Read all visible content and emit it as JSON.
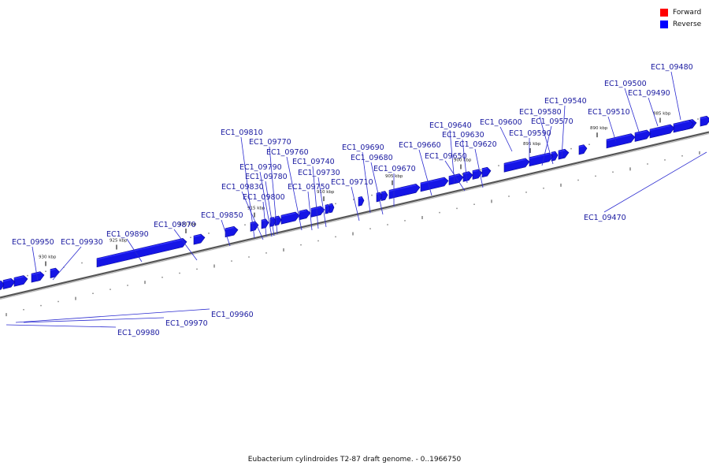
{
  "legend": {
    "items": [
      {
        "label": "Forward",
        "color": "#ff0000"
      },
      {
        "label": "Reverse",
        "color": "#0000ff"
      }
    ]
  },
  "footer": {
    "caption": "Eubacterium cylindroides T2-87 draft genome. - 0..1966750"
  },
  "colors": {
    "gene": "#1515e6",
    "gene_top": "#3333ff",
    "gene_shade": "#0a0a9a",
    "label": "#1a1aa0",
    "axis": "#777777"
  },
  "scale": {
    "ticks": [
      "885 kbp",
      "890 kbp",
      "895 kbp",
      "900 kbp",
      "905 kbp",
      "910 kbp",
      "915 kbp",
      "920 kbp",
      "925 kbp",
      "930 kbp"
    ]
  },
  "genes": [
    "EC1_09480",
    "EC1_09500",
    "EC1_09490",
    "EC1_09540",
    "EC1_09510",
    "EC1_09580",
    "EC1_09570",
    "EC1_09600",
    "EC1_09640",
    "EC1_09630",
    "EC1_09620",
    "EC1_09590",
    "EC1_09660",
    "EC1_09650",
    "EC1_09690",
    "EC1_09680",
    "EC1_09670",
    "EC1_09710",
    "EC1_09810",
    "EC1_09770",
    "EC1_09760",
    "EC1_09740",
    "EC1_09790",
    "EC1_09730",
    "EC1_09780",
    "EC1_09830",
    "EC1_09750",
    "EC1_09800",
    "EC1_09850",
    "EC1_09870",
    "EC1_09890",
    "EC1_09950",
    "EC1_09930",
    "EC1_09470",
    "EC1_09960",
    "EC1_09970",
    "EC1_09980"
  ]
}
